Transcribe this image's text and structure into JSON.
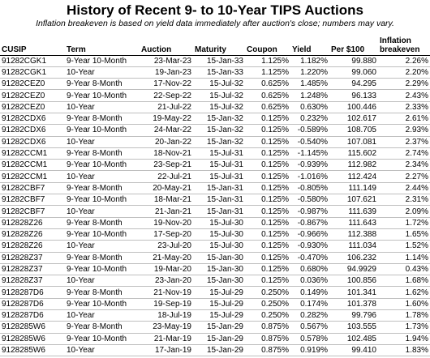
{
  "title": "History of Recent 9- to 10-Year TIPS Auctions",
  "subtitle": "Inflation breakeven is based on yield data immediately after auction's close; numbers may vary.",
  "headers": [
    "CUSIP",
    "Term",
    "Auction",
    "Maturity",
    "Coupon",
    "Yield",
    "Per $100",
    "Inflation breakeven"
  ],
  "rows": [
    [
      "91282CGK1",
      "9-Year 10-Month",
      "23-Mar-23",
      "15-Jan-33",
      "1.125%",
      "1.182%",
      "99.880",
      "2.26%"
    ],
    [
      "91282CGK1",
      "10-Year",
      "19-Jan-23",
      "15-Jan-33",
      "1.125%",
      "1.220%",
      "99.060",
      "2.20%"
    ],
    [
      "91282CEZ0",
      "9-Year 8-Month",
      "17-Nov-22",
      "15-Jul-32",
      "0.625%",
      "1.485%",
      "94.295",
      "2.29%"
    ],
    [
      "91282CEZ0",
      "9-Year 10-Month",
      "22-Sep-22",
      "15-Jul-32",
      "0.625%",
      "1.248%",
      "96.133",
      "2.43%"
    ],
    [
      "91282CEZ0",
      "10-Year",
      "21-Jul-22",
      "15-Jul-32",
      "0.625%",
      "0.630%",
      "100.446",
      "2.33%"
    ],
    [
      "91282CDX6",
      "9-Year 8-Month",
      "19-May-22",
      "15-Jan-32",
      "0.125%",
      "0.232%",
      "102.617",
      "2.61%"
    ],
    [
      "91282CDX6",
      "9-Year 10-Month",
      "24-Mar-22",
      "15-Jan-32",
      "0.125%",
      "-0.589%",
      "108.705",
      "2.93%"
    ],
    [
      "91282CDX6",
      "10-Year",
      "20-Jan-22",
      "15-Jan-32",
      "0.125%",
      "-0.540%",
      "107.081",
      "2.37%"
    ],
    [
      "91282CCM1",
      "9-Year 8-Month",
      "18-Nov-21",
      "15-Jul-31",
      "0.125%",
      "-1.145%",
      "115.602",
      "2.74%"
    ],
    [
      "91282CCM1",
      "9-Year 10-Month",
      "23-Sep-21",
      "15-Jul-31",
      "0.125%",
      "-0.939%",
      "112.982",
      "2.34%"
    ],
    [
      "91282CCM1",
      "10-Year",
      "22-Jul-21",
      "15-Jul-31",
      "0.125%",
      "-1.016%",
      "112.424",
      "2.27%"
    ],
    [
      "91282CBF7",
      "9-Year 8-Month",
      "20-May-21",
      "15-Jan-31",
      "0.125%",
      "-0.805%",
      "111.149",
      "2.44%"
    ],
    [
      "91282CBF7",
      "9-Year 10-Month",
      "18-Mar-21",
      "15-Jan-31",
      "0.125%",
      "-0.580%",
      "107.621",
      "2.31%"
    ],
    [
      "91282CBF7",
      "10-Year",
      "21-Jan-21",
      "15-Jan-31",
      "0.125%",
      "-0.987%",
      "111.639",
      "2.09%"
    ],
    [
      "912828Z26",
      "9-Year 8-Month",
      "19-Nov-20",
      "15-Jul-30",
      "0.125%",
      "-0.867%",
      "111.643",
      "1.72%"
    ],
    [
      "912828Z26",
      "9-Year 10-Month",
      "17-Sep-20",
      "15-Jul-30",
      "0.125%",
      "-0.966%",
      "112.388",
      "1.65%"
    ],
    [
      "912828Z26",
      "10-Year",
      "23-Jul-20",
      "15-Jul-30",
      "0.125%",
      "-0.930%",
      "111.034",
      "1.52%"
    ],
    [
      "912828Z37",
      "9-Year 8-Month",
      "21-May-20",
      "15-Jan-30",
      "0.125%",
      "-0.470%",
      "106.232",
      "1.14%"
    ],
    [
      "912828Z37",
      "9-Year 10-Month",
      "19-Mar-20",
      "15-Jan-30",
      "0.125%",
      "0.680%",
      "94.9929",
      "0.43%"
    ],
    [
      "912828Z37",
      "10-Year",
      "23-Jan-20",
      "15-Jan-30",
      "0.125%",
      "0.036%",
      "100.856",
      "1.68%"
    ],
    [
      "9128287D6",
      "9-Year 8-Month",
      "21-Nov-19",
      "15-Jul-29",
      "0.250%",
      "0.149%",
      "101.341",
      "1.62%"
    ],
    [
      "9128287D6",
      "9-Year 10-Month",
      "19-Sep-19",
      "15-Jul-29",
      "0.250%",
      "0.174%",
      "101.378",
      "1.60%"
    ],
    [
      "9128287D6",
      "10-Year",
      "18-Jul-19",
      "15-Jul-29",
      "0.250%",
      "0.282%",
      "99.796",
      "1.78%"
    ],
    [
      "9128285W6",
      "9-Year 8-Month",
      "23-May-19",
      "15-Jan-29",
      "0.875%",
      "0.567%",
      "103.555",
      "1.73%"
    ],
    [
      "9128285W6",
      "9-Year 10-Month",
      "21-Mar-19",
      "15-Jan-29",
      "0.875%",
      "0.578%",
      "102.485",
      "1.94%"
    ],
    [
      "9128285W6",
      "10-Year",
      "17-Jan-19",
      "15-Jan-29",
      "0.875%",
      "0.919%",
      "99.410",
      "1.83%"
    ]
  ]
}
